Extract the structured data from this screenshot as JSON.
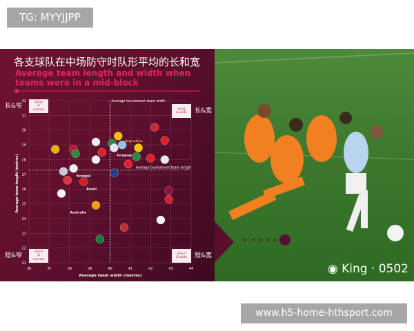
{
  "tag": "TG: MYYJJPP",
  "footer": "www.h5-home-hthsport.com",
  "watermark": "King · 0502",
  "colors": {
    "panel": "#5a0f2c",
    "accent": "#e0245e",
    "pitch": "#3f7a2f"
  },
  "chart_data": {
    "type": "scatter",
    "title": "各支球队在中场防守时队形平均的长和宽",
    "subtitle": "Average team length and width when teams were in a mid-block",
    "xlabel": "Average team width (metres)",
    "ylabel": "Average team length (metres)",
    "xlim": [
      36,
      44
    ],
    "ylim": [
      21,
      32
    ],
    "xticks": [
      "36",
      "37",
      "38",
      "39",
      "40",
      "41",
      "42",
      "43",
      "44"
    ],
    "yticks": [
      "21",
      "22",
      "23",
      "24",
      "25",
      "26",
      "27",
      "28",
      "29",
      "30",
      "31",
      "32"
    ],
    "grid": true,
    "reference_lines": [
      {
        "axis": "x",
        "value": 40.0,
        "label": "Average tournament team width"
      },
      {
        "axis": "y",
        "value": 27.3,
        "label": "Average tournament team length"
      }
    ],
    "quadrants": [
      {
        "label": "Long & narrow",
        "cn": "长&窄",
        "pos": "top-left"
      },
      {
        "label": "Long & wide",
        "cn": "长&宽",
        "pos": "top-right"
      },
      {
        "label": "Short & narrow",
        "cn": "短&窄",
        "pos": "bottom-left"
      },
      {
        "label": "Short & wide",
        "cn": "短&宽",
        "pos": "bottom-right"
      }
    ],
    "points": [
      {
        "x": 37.3,
        "y": 28.7,
        "color": "#e8b400"
      },
      {
        "x": 38.2,
        "y": 28.7,
        "color": "#c8102e"
      },
      {
        "x": 38.3,
        "y": 28.4,
        "color": "#2a8a3e"
      },
      {
        "x": 39.3,
        "y": 29.2,
        "color": "#f0f0f0"
      },
      {
        "x": 39.6,
        "y": 28.5,
        "color": "#e0202a"
      },
      {
        "x": 39.3,
        "y": 28.0,
        "color": "#f4f4f4"
      },
      {
        "x": 40.1,
        "y": 29.1,
        "color": "#2a8a3e"
      },
      {
        "x": 40.4,
        "y": 29.6,
        "color": "#f0c000"
      },
      {
        "x": 40.6,
        "y": 29.0,
        "color": "#8fc3ea",
        "label": "Argentina",
        "label_color": "#f0a040"
      },
      {
        "x": 40.2,
        "y": 28.8,
        "color": "#dfe8f5",
        "label": "Uruguay"
      },
      {
        "x": 41.4,
        "y": 28.8,
        "color": "#f0c800"
      },
      {
        "x": 41.3,
        "y": 28.2,
        "color": "#2a8a3e"
      },
      {
        "x": 42.0,
        "y": 28.1,
        "color": "#e0202a"
      },
      {
        "x": 42.7,
        "y": 28.0,
        "color": "#e8e8f0"
      },
      {
        "x": 42.2,
        "y": 30.2,
        "color": "#c8283a"
      },
      {
        "x": 42.7,
        "y": 29.3,
        "color": "#e0202a"
      },
      {
        "x": 40.9,
        "y": 27.7,
        "color": "#e0202a"
      },
      {
        "x": 40.2,
        "y": 27.1,
        "color": "#2a3a8a"
      },
      {
        "x": 37.7,
        "y": 27.2,
        "color": "#c8c8d8"
      },
      {
        "x": 38.2,
        "y": 27.4,
        "color": "#f0f0f0",
        "label": "Senegal"
      },
      {
        "x": 37.9,
        "y": 26.6,
        "color": "#e03040"
      },
      {
        "x": 38.7,
        "y": 26.5,
        "color": "#d02020",
        "label": "Brazil"
      },
      {
        "x": 37.6,
        "y": 25.7,
        "color": "#f4f4f4"
      },
      {
        "x": 39.3,
        "y": 24.9,
        "color": "#f0a000",
        "label": "Australia"
      },
      {
        "x": 40.7,
        "y": 23.4,
        "color": "#c03030"
      },
      {
        "x": 42.5,
        "y": 23.9,
        "color": "#f4f4f4"
      },
      {
        "x": 42.9,
        "y": 25.9,
        "color": "#8a1538"
      },
      {
        "x": 42.9,
        "y": 25.3,
        "color": "#d02030"
      },
      {
        "x": 39.5,
        "y": 22.6,
        "color": "#1a7a40"
      }
    ]
  }
}
